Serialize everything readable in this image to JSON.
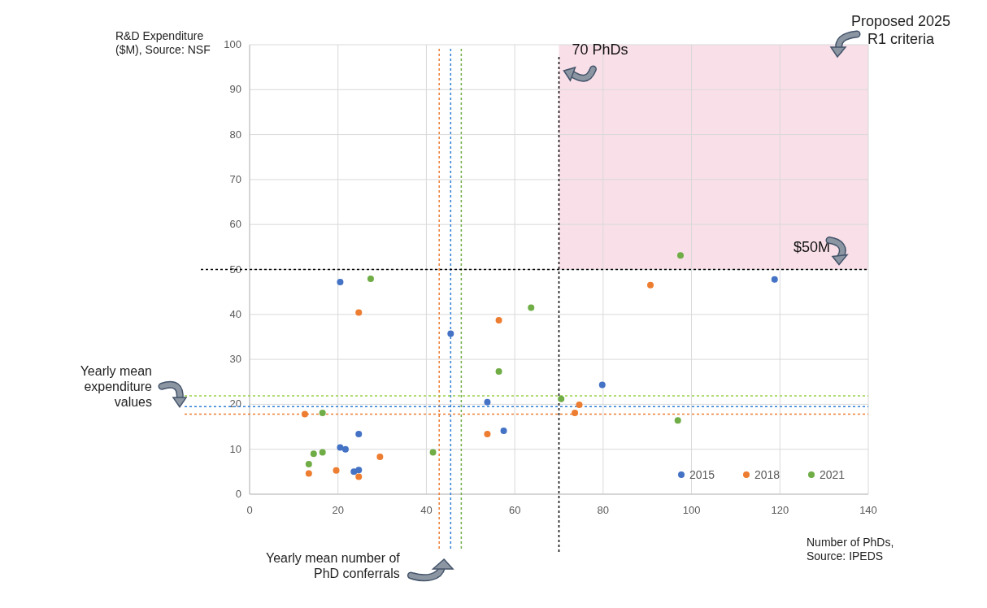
{
  "chart_data": {
    "type": "scatter",
    "xlabel": "Number of PhDs, Source: IPEDS",
    "ylabel": "R&D Expenditure ($M), Source: NSF",
    "xlim": [
      0,
      140
    ],
    "xticks": [
      0,
      20,
      40,
      60,
      80,
      100,
      120,
      140
    ],
    "ylim": [
      0,
      100
    ],
    "yticks": [
      0,
      10,
      20,
      30,
      40,
      50,
      60,
      70,
      80,
      90,
      100
    ],
    "grid": true,
    "legend": "bottom right",
    "marker": "circle",
    "series": [
      {
        "name": "2015",
        "color": "#4472c4",
        "x": [
          20.5,
          45.5,
          53.8,
          24.7,
          57.5,
          20.5,
          21.7,
          23.6,
          24.7,
          79.8,
          118.8
        ],
        "values": [
          47.2,
          35.7,
          20.5,
          13.4,
          14.1,
          10.4,
          10.0,
          5.0,
          5.4,
          24.3,
          47.8
        ]
      },
      {
        "name": "2018",
        "color": "#ed7d31",
        "x": [
          24.7,
          56.4,
          12.5,
          53.8,
          29.5,
          13.4,
          19.6,
          24.7,
          74.6,
          73.6,
          90.7
        ],
        "values": [
          40.4,
          38.7,
          17.8,
          13.4,
          8.3,
          4.6,
          5.3,
          3.9,
          19.9,
          18.1,
          46.5
        ]
      },
      {
        "name": "2021",
        "color": "#70ad47",
        "x": [
          27.4,
          63.7,
          56.4,
          16.5,
          16.5,
          14.5,
          41.5,
          13.4,
          70.5,
          96.9,
          97.5
        ],
        "values": [
          47.9,
          41.5,
          27.3,
          18.1,
          9.3,
          9.0,
          9.3,
          6.7,
          21.2,
          16.4,
          53.1
        ]
      }
    ],
    "ref_lines": [
      {
        "axis": "x",
        "value": 70,
        "label": "70 PhDs",
        "color": "#000000",
        "line_style": "dashed"
      },
      {
        "axis": "y",
        "value": 50,
        "label": "$50M",
        "color": "#000000",
        "line_style": "dashed"
      },
      {
        "axis": "x",
        "value": 42.9,
        "color": "#ed7d31",
        "line_style": "dashed"
      },
      {
        "axis": "x",
        "value": 45.5,
        "color": "#2f7fd6",
        "line_style": "dashed"
      },
      {
        "axis": "x",
        "value": 47.9,
        "color": "#70ad47",
        "line_style": "dashed"
      },
      {
        "axis": "y",
        "value": 21.9,
        "color": "#9ad04a",
        "line_style": "dashed"
      },
      {
        "axis": "y",
        "value": 19.5,
        "color": "#2f7fd6",
        "line_style": "dashed"
      },
      {
        "axis": "y",
        "value": 17.8,
        "color": "#ed7d31",
        "line_style": "dashed"
      }
    ],
    "bands": [
      {
        "axis": "x",
        "from": 70,
        "to": 140,
        "label": "Proposed 2025 R1 criteria",
        "color": "#f9dfe8"
      }
    ],
    "annotations": [
      "Yearly mean expenditure values",
      "Yearly mean number of PhD conferrals"
    ]
  }
}
